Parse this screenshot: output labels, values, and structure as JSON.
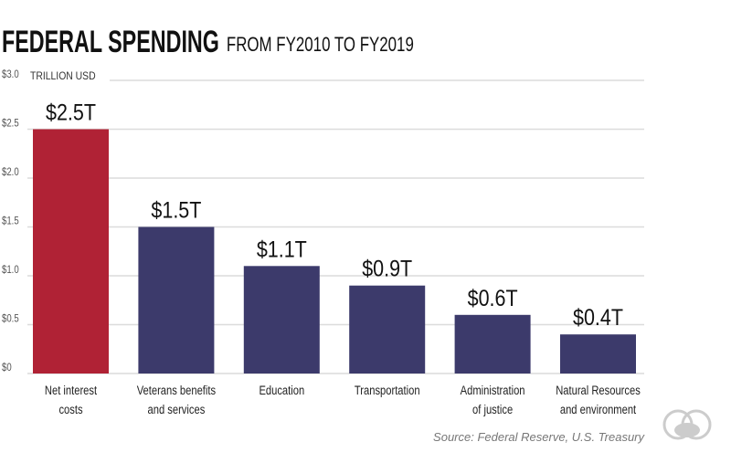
{
  "chart_data": {
    "type": "bar",
    "title": "FEDERAL SPENDING",
    "subtitle": "FROM FY2010 TO FY2019",
    "ylabel": "TRILLION USD",
    "ylim": [
      0,
      3.0
    ],
    "yticks": [
      "$0",
      "$0.5",
      "$1.0",
      "$1.5",
      "$2.0",
      "$2.5",
      "$3.0"
    ],
    "grid": true,
    "categories": [
      [
        "Net interest",
        "costs"
      ],
      [
        "Veterans benefits",
        "and services"
      ],
      [
        "Education"
      ],
      [
        "Transportation"
      ],
      [
        "Administration",
        "of justice"
      ],
      [
        "Natural Resources",
        "and environment"
      ]
    ],
    "values": [
      2.5,
      1.5,
      1.1,
      0.9,
      0.6,
      0.4
    ],
    "data_labels": [
      "$2.5T",
      "$1.5T",
      "$1.1T",
      "$0.9T",
      "$0.6T",
      "$0.4T"
    ],
    "colors": [
      "#b02235",
      "#3c3a6b",
      "#3c3a6b",
      "#3c3a6b",
      "#3c3a6b",
      "#3c3a6b"
    ],
    "source": "Source: Federal Reserve, U.S. Treasury"
  },
  "logo": "logo-icon"
}
